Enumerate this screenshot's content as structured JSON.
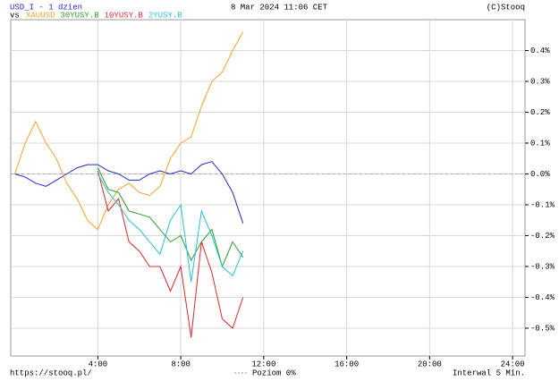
{
  "chart_data": {
    "type": "line",
    "title": "8 Mar 2024 11:06 CET",
    "source": "(C)Stooq",
    "vs_label": "vs",
    "url": "https://stooq.pl/",
    "zero_line_label": "Poziom 0%",
    "interval_label": "Interwal 5 Min.",
    "zero_line": true,
    "grid": true,
    "x": [
      0,
      0.5,
      1,
      1.5,
      2,
      2.5,
      3,
      3.5,
      4,
      4.5,
      5,
      5.5,
      6,
      6.5,
      7,
      7.5,
      8,
      8.5,
      9,
      9.5,
      10,
      10.5,
      11
    ],
    "xlim": [
      -0.2,
      24.6
    ],
    "xticks": [
      {
        "value": 4,
        "label": "4:00"
      },
      {
        "value": 8,
        "label": "8:00"
      },
      {
        "value": 12,
        "label": "12:00"
      },
      {
        "value": 16,
        "label": "16:00"
      },
      {
        "value": 20,
        "label": "20:00"
      },
      {
        "value": 24,
        "label": "24:00"
      }
    ],
    "ylim": [
      -0.59,
      0.5
    ],
    "yticks": [
      {
        "value": 0.4,
        "label": "0.4%"
      },
      {
        "value": 0.3,
        "label": "0.3%"
      },
      {
        "value": 0.2,
        "label": "0.2%"
      },
      {
        "value": 0.1,
        "label": "0.1%"
      },
      {
        "value": 0,
        "label": "0.0%"
      },
      {
        "value": -0.1,
        "label": "-0.1%"
      },
      {
        "value": -0.2,
        "label": "-0.2%"
      },
      {
        "value": -0.3,
        "label": "-0.3%"
      },
      {
        "value": -0.4,
        "label": "-0.4%"
      },
      {
        "value": -0.5,
        "label": "-0.5%"
      }
    ],
    "series": [
      {
        "name": "USD_I - 1 dzien",
        "color": "#2828c0",
        "values": [
          0,
          -0.01,
          -0.03,
          -0.04,
          -0.02,
          0,
          0.02,
          0.03,
          0.03,
          0.01,
          0,
          -0.02,
          -0.02,
          0,
          0.01,
          0,
          0.01,
          0,
          0.03,
          0.04,
          0,
          -0.06,
          -0.16
        ]
      },
      {
        "name": "XAUUSD",
        "color": "#f0a030",
        "values": [
          0,
          0.1,
          0.17,
          0.1,
          0.05,
          -0.03,
          -0.08,
          -0.15,
          -0.18,
          -0.1,
          -0.05,
          -0.03,
          -0.06,
          -0.07,
          -0.04,
          0.05,
          0.1,
          0.12,
          0.22,
          0.3,
          0.33,
          0.4,
          0.46
        ]
      },
      {
        "name": "30YUSY.B",
        "color": "#28a028",
        "values": [
          null,
          null,
          null,
          null,
          null,
          null,
          null,
          null,
          0.02,
          -0.05,
          -0.06,
          -0.12,
          -0.13,
          -0.14,
          -0.18,
          -0.22,
          -0.2,
          -0.28,
          -0.22,
          -0.18,
          -0.3,
          -0.22,
          -0.27
        ]
      },
      {
        "name": "10YUSY.B",
        "color": "#e02828",
        "values": [
          null,
          null,
          null,
          null,
          null,
          null,
          null,
          null,
          0.01,
          -0.12,
          -0.08,
          -0.22,
          -0.25,
          -0.3,
          -0.3,
          -0.38,
          -0.3,
          -0.53,
          -0.22,
          -0.32,
          -0.47,
          -0.5,
          -0.4
        ]
      },
      {
        "name": "2YUSY.B",
        "color": "#28c0d0",
        "values": [
          null,
          null,
          null,
          null,
          null,
          null,
          null,
          null,
          0,
          -0.06,
          -0.1,
          -0.15,
          -0.18,
          -0.22,
          -0.26,
          -0.15,
          -0.1,
          -0.35,
          -0.12,
          -0.2,
          -0.3,
          -0.33,
          -0.25
        ]
      }
    ]
  }
}
